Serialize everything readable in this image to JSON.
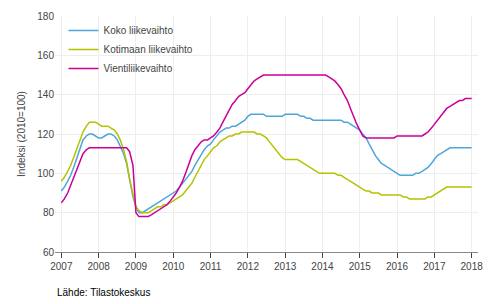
{
  "chart_data": {
    "type": "line",
    "ylabel": "Indeksi (2010=100)",
    "annotations": [
      "Lähde: Tilastokeskus"
    ],
    "xlim": [
      2006.83,
      2018.17
    ],
    "xticks": [
      2007,
      2008,
      2009,
      2010,
      2011,
      2012,
      2013,
      2014,
      2015,
      2016,
      2017,
      2018
    ],
    "ylim": [
      60,
      180
    ],
    "yticks": [
      60,
      80,
      100,
      120,
      140,
      160,
      180
    ],
    "grid": true,
    "legend": "upper left",
    "x": [
      2007.0,
      2007.08,
      2007.17,
      2007.25,
      2007.33,
      2007.42,
      2007.5,
      2007.58,
      2007.67,
      2007.75,
      2007.83,
      2007.92,
      2008.0,
      2008.08,
      2008.17,
      2008.25,
      2008.33,
      2008.42,
      2008.5,
      2008.58,
      2008.67,
      2008.75,
      2008.83,
      2008.92,
      2009.0,
      2009.08,
      2009.17,
      2009.25,
      2009.33,
      2009.42,
      2009.5,
      2009.58,
      2009.67,
      2009.75,
      2009.83,
      2009.92,
      2010.0,
      2010.08,
      2010.17,
      2010.25,
      2010.33,
      2010.42,
      2010.5,
      2010.58,
      2010.67,
      2010.75,
      2010.83,
      2010.92,
      2011.0,
      2011.08,
      2011.17,
      2011.25,
      2011.33,
      2011.42,
      2011.5,
      2011.58,
      2011.67,
      2011.75,
      2011.83,
      2011.92,
      2012.0,
      2012.08,
      2012.17,
      2012.25,
      2012.33,
      2012.42,
      2012.5,
      2012.58,
      2012.67,
      2012.75,
      2012.83,
      2012.92,
      2013.0,
      2013.08,
      2013.17,
      2013.25,
      2013.33,
      2013.42,
      2013.5,
      2013.58,
      2013.67,
      2013.75,
      2013.83,
      2013.92,
      2014.0,
      2014.08,
      2014.17,
      2014.25,
      2014.33,
      2014.42,
      2014.5,
      2014.58,
      2014.67,
      2014.75,
      2014.83,
      2014.92,
      2015.0,
      2015.08,
      2015.17,
      2015.25,
      2015.33,
      2015.42,
      2015.5,
      2015.58,
      2015.67,
      2015.75,
      2015.83,
      2015.92,
      2016.0,
      2016.08,
      2016.17,
      2016.25,
      2016.33,
      2016.42,
      2016.5,
      2016.58,
      2016.67,
      2016.75,
      2016.83,
      2016.92,
      2017.0,
      2017.08,
      2017.17,
      2017.25,
      2017.33,
      2017.42,
      2017.5,
      2017.58,
      2017.67,
      2017.75,
      2017.83,
      2017.92,
      2018.0
    ],
    "series": [
      {
        "name": "Koko liikevaihto",
        "color": "#4da6d9",
        "values": [
          91,
          93,
          96,
          99,
          103,
          108,
          113,
          117,
          119,
          120,
          120,
          119,
          118,
          118,
          119,
          120,
          120,
          119,
          117,
          114,
          110,
          105,
          96,
          88,
          83,
          80,
          80,
          81,
          82,
          83,
          84,
          85,
          86,
          87,
          88,
          89,
          90,
          91,
          93,
          95,
          97,
          99,
          101,
          104,
          107,
          110,
          112,
          114,
          115,
          117,
          119,
          121,
          122,
          123,
          123,
          124,
          124,
          125,
          126,
          127,
          129,
          130,
          130,
          130,
          130,
          130,
          129,
          129,
          129,
          129,
          129,
          129,
          130,
          130,
          130,
          130,
          130,
          129,
          129,
          128,
          128,
          127,
          127,
          127,
          127,
          127,
          127,
          127,
          127,
          127,
          127,
          126,
          126,
          125,
          124,
          123,
          122,
          120,
          118,
          115,
          112,
          109,
          107,
          105,
          104,
          103,
          102,
          101,
          100,
          99,
          99,
          99,
          99,
          99,
          100,
          100,
          101,
          102,
          103,
          105,
          107,
          109,
          110,
          111,
          112,
          113,
          113,
          113,
          113,
          113,
          113,
          113,
          113
        ]
      },
      {
        "name": "Kotimaan liikevaihto",
        "color": "#b5c200",
        "values": [
          96,
          98,
          101,
          104,
          108,
          113,
          117,
          121,
          124,
          126,
          126,
          126,
          125,
          124,
          124,
          124,
          123,
          122,
          120,
          117,
          112,
          106,
          97,
          89,
          83,
          81,
          80,
          80,
          80,
          81,
          82,
          83,
          83,
          84,
          84,
          85,
          86,
          87,
          88,
          89,
          91,
          93,
          95,
          98,
          101,
          104,
          107,
          109,
          111,
          113,
          114,
          116,
          117,
          118,
          119,
          119,
          120,
          120,
          121,
          121,
          121,
          121,
          121,
          120,
          120,
          119,
          118,
          116,
          114,
          112,
          110,
          108,
          107,
          107,
          107,
          107,
          107,
          106,
          105,
          104,
          103,
          102,
          101,
          100,
          100,
          100,
          100,
          100,
          100,
          99,
          99,
          98,
          97,
          96,
          95,
          94,
          93,
          92,
          91,
          91,
          90,
          90,
          90,
          89,
          89,
          89,
          89,
          89,
          89,
          89,
          88,
          88,
          87,
          87,
          87,
          87,
          87,
          87,
          88,
          88,
          89,
          90,
          91,
          92,
          93,
          93,
          93,
          93,
          93,
          93,
          93,
          93,
          93
        ]
      },
      {
        "name": "Vientiliikevaihto",
        "color": "#cc0099",
        "values": [
          85,
          87,
          90,
          94,
          98,
          103,
          107,
          110,
          112,
          113,
          113,
          113,
          113,
          113,
          113,
          113,
          113,
          113,
          113,
          113,
          113,
          113,
          111,
          104,
          80,
          78,
          78,
          78,
          78,
          79,
          80,
          81,
          82,
          83,
          84,
          86,
          88,
          90,
          93,
          96,
          100,
          105,
          109,
          112,
          114,
          116,
          117,
          117,
          118,
          119,
          121,
          123,
          126,
          129,
          132,
          135,
          137,
          139,
          140,
          141,
          143,
          145,
          147,
          148,
          149,
          150,
          150,
          150,
          150,
          150,
          150,
          150,
          150,
          150,
          150,
          150,
          150,
          150,
          150,
          150,
          150,
          150,
          150,
          150,
          150,
          150,
          149,
          148,
          147,
          145,
          143,
          140,
          137,
          133,
          129,
          125,
          122,
          119,
          118,
          118,
          118,
          118,
          118,
          118,
          118,
          118,
          118,
          118,
          119,
          119,
          119,
          119,
          119,
          119,
          119,
          119,
          119,
          120,
          121,
          123,
          125,
          127,
          129,
          131,
          133,
          134,
          135,
          136,
          137,
          137,
          138,
          138,
          138
        ]
      }
    ]
  }
}
